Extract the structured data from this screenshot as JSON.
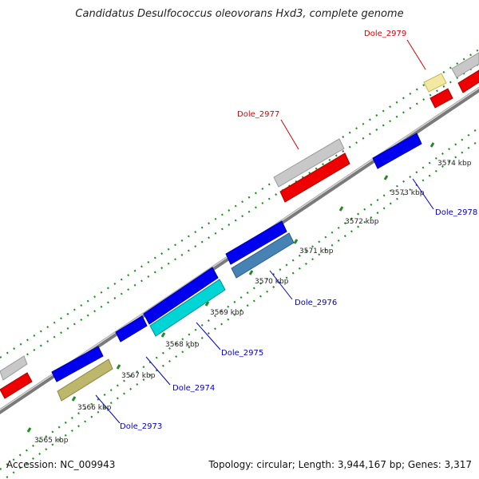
{
  "title": "Candidatus Desulfococcus oleovorans Hxd3, complete genome",
  "footer": {
    "accession": "Accession: NC_009943",
    "summary": "Topology: circular; Length: 3,944,167 bp; Genes: 3,317"
  },
  "ticks": [
    {
      "label": "3565 kbp"
    },
    {
      "label": "3566 kbp"
    },
    {
      "label": "3567 kbp"
    },
    {
      "label": "3568 kbp"
    },
    {
      "label": "3569 kbp"
    },
    {
      "label": "3570 kbp"
    },
    {
      "label": "3571 kbp"
    },
    {
      "label": "3572 kbp"
    },
    {
      "label": "3573 kbp"
    },
    {
      "label": "3574 kbp"
    }
  ],
  "genes": [
    {
      "label": "Dole_2973",
      "color": "#0000cc"
    },
    {
      "label": "Dole_2974",
      "color": "#0000cc"
    },
    {
      "label": "Dole_2975",
      "color": "#0000cc"
    },
    {
      "label": "Dole_2976",
      "color": "#0000cc"
    },
    {
      "label": "Dole_2977",
      "color": "#dd0000"
    },
    {
      "label": "Dole_2978",
      "color": "#0000cc"
    },
    {
      "label": "Dole_2979",
      "color": "#dd0000"
    }
  ],
  "colors": {
    "cds_forward": "#0000ee",
    "cds_reverse": "#ff0000",
    "feature_gray": "#c8c8c8",
    "tick_green": "#228b22",
    "backbone": "#808080"
  }
}
